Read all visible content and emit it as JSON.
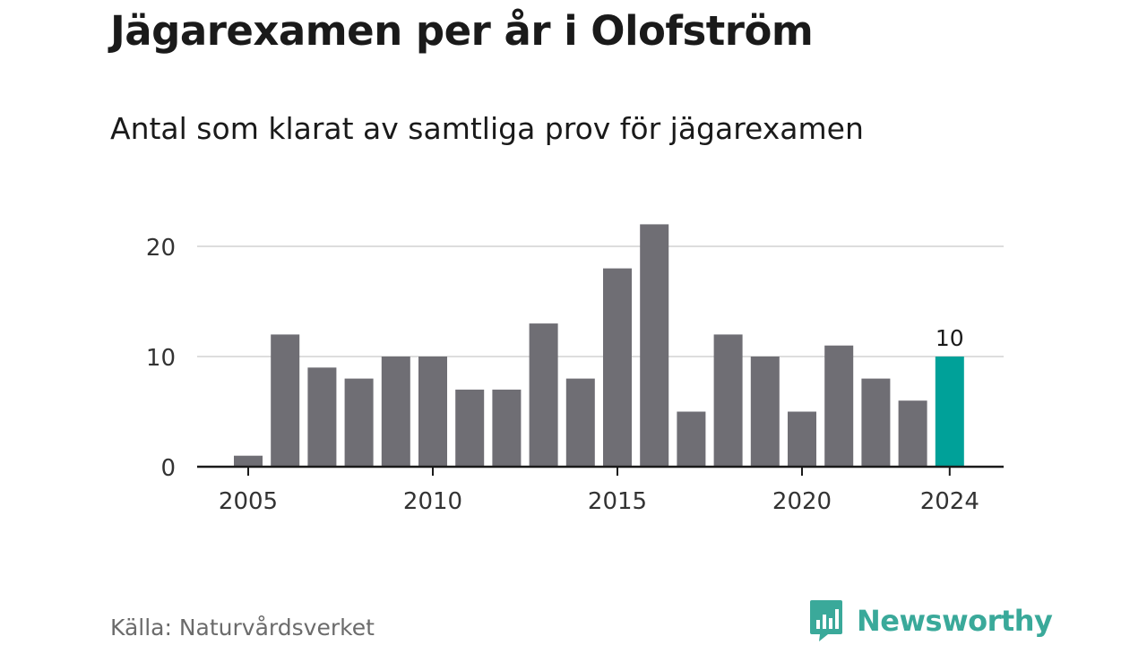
{
  "header": {
    "title": "Jägarexamen per år i Olofström",
    "subtitle": "Antal som klarat av samtliga prov för jägarexamen"
  },
  "footer": {
    "source": "Källa: Naturvårdsverket",
    "brand": "Newsworthy"
  },
  "colors": {
    "bar": "#6f6e74",
    "highlight": "#00a199",
    "grid": "#dddddd",
    "axis": "#1a1a1a",
    "brand": "#3aa99a"
  },
  "chart_data": {
    "type": "bar",
    "categories": [
      2005,
      2006,
      2007,
      2008,
      2009,
      2010,
      2011,
      2012,
      2013,
      2014,
      2015,
      2016,
      2017,
      2018,
      2019,
      2020,
      2021,
      2022,
      2023,
      2024
    ],
    "values": [
      1,
      12,
      9,
      8,
      10,
      10,
      7,
      7,
      13,
      8,
      18,
      22,
      5,
      12,
      10,
      5,
      11,
      8,
      6,
      10
    ],
    "highlight_category": 2024,
    "highlight_label": "10",
    "ylim": [
      0,
      22
    ],
    "yticks": [
      0,
      10,
      20
    ],
    "xticks": [
      2005,
      2010,
      2015,
      2020,
      2024
    ],
    "grid": true
  }
}
